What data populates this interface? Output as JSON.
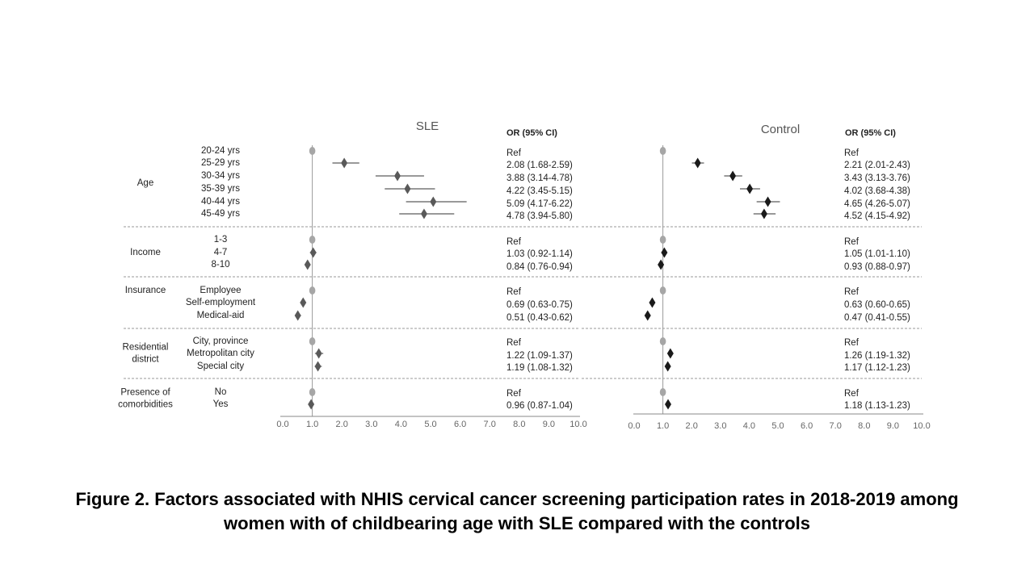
{
  "panels": [
    {
      "title": "SLE",
      "or_header": "OR (95% CI)",
      "marker_color": "#595959",
      "ref_color": "#a6a6a6",
      "xlim": [
        0,
        10
      ],
      "ticks": [
        "0.0",
        "1.0",
        "2.0",
        "3.0",
        "4.0",
        "5.0",
        "6.0",
        "7.0",
        "8.0",
        "9.0",
        "10.0"
      ],
      "rows": [
        {
          "or": 1.0,
          "lo": 1.0,
          "hi": 1.0,
          "label": "Ref",
          "ref": true
        },
        {
          "or": 2.08,
          "lo": 1.68,
          "hi": 2.59,
          "label": "2.08 (1.68-2.59)"
        },
        {
          "or": 3.88,
          "lo": 3.14,
          "hi": 4.78,
          "label": "3.88 (3.14-4.78)"
        },
        {
          "or": 4.22,
          "lo": 3.45,
          "hi": 5.15,
          "label": "4.22 (3.45-5.15)"
        },
        {
          "or": 5.09,
          "lo": 4.17,
          "hi": 6.22,
          "label": "5.09 (4.17-6.22)"
        },
        {
          "or": 4.78,
          "lo": 3.94,
          "hi": 5.8,
          "label": "4.78 (3.94-5.80)"
        },
        {
          "or": 1.0,
          "lo": 1.0,
          "hi": 1.0,
          "label": "Ref",
          "ref": true
        },
        {
          "or": 1.03,
          "lo": 0.92,
          "hi": 1.14,
          "label": "1.03 (0.92-1.14)"
        },
        {
          "or": 0.84,
          "lo": 0.76,
          "hi": 0.94,
          "label": "0.84 (0.76-0.94)"
        },
        {
          "or": 1.0,
          "lo": 1.0,
          "hi": 1.0,
          "label": "Ref",
          "ref": true
        },
        {
          "or": 0.69,
          "lo": 0.63,
          "hi": 0.75,
          "label": "0.69 (0.63-0.75)"
        },
        {
          "or": 0.51,
          "lo": 0.43,
          "hi": 0.62,
          "label": "0.51 (0.43-0.62)"
        },
        {
          "or": 1.0,
          "lo": 1.0,
          "hi": 1.0,
          "label": "Ref",
          "ref": true
        },
        {
          "or": 1.22,
          "lo": 1.09,
          "hi": 1.37,
          "label": "1.22 (1.09-1.37)"
        },
        {
          "or": 1.19,
          "lo": 1.08,
          "hi": 1.32,
          "label": "1.19 (1.08-1.32)"
        },
        {
          "or": 1.0,
          "lo": 1.0,
          "hi": 1.0,
          "label": "Ref",
          "ref": true
        },
        {
          "or": 0.96,
          "lo": 0.87,
          "hi": 1.04,
          "label": "0.96 (0.87-1.04)"
        }
      ]
    },
    {
      "title": "Control",
      "or_header": "OR (95% CI)",
      "marker_color": "#1a1a1a",
      "ref_color": "#a6a6a6",
      "xlim": [
        0,
        10
      ],
      "ticks": [
        "0.0",
        "1.0",
        "2.0",
        "3.0",
        "4.0",
        "5.0",
        "6.0",
        "7.0",
        "8.0",
        "9.0",
        "10.0"
      ],
      "rows": [
        {
          "or": 1.0,
          "lo": 1.0,
          "hi": 1.0,
          "label": "Ref",
          "ref": true
        },
        {
          "or": 2.21,
          "lo": 2.01,
          "hi": 2.43,
          "label": "2.21 (2.01-2.43)"
        },
        {
          "or": 3.43,
          "lo": 3.13,
          "hi": 3.76,
          "label": "3.43 (3.13-3.76)"
        },
        {
          "or": 4.02,
          "lo": 3.68,
          "hi": 4.38,
          "label": "4.02 (3.68-4.38)"
        },
        {
          "or": 4.65,
          "lo": 4.26,
          "hi": 5.07,
          "label": "4.65 (4.26-5.07)"
        },
        {
          "or": 4.52,
          "lo": 4.15,
          "hi": 4.92,
          "label": "4.52 (4.15-4.92)"
        },
        {
          "or": 1.0,
          "lo": 1.0,
          "hi": 1.0,
          "label": "Ref",
          "ref": true
        },
        {
          "or": 1.05,
          "lo": 1.01,
          "hi": 1.1,
          "label": "1.05 (1.01-1.10)"
        },
        {
          "or": 0.93,
          "lo": 0.88,
          "hi": 0.97,
          "label": "0.93 (0.88-0.97)"
        },
        {
          "or": 1.0,
          "lo": 1.0,
          "hi": 1.0,
          "label": "Ref",
          "ref": true
        },
        {
          "or": 0.63,
          "lo": 0.6,
          "hi": 0.65,
          "label": "0.63 (0.60-0.65)"
        },
        {
          "or": 0.47,
          "lo": 0.41,
          "hi": 0.55,
          "label": "0.47 (0.41-0.55)"
        },
        {
          "or": 1.0,
          "lo": 1.0,
          "hi": 1.0,
          "label": "Ref",
          "ref": true
        },
        {
          "or": 1.26,
          "lo": 1.19,
          "hi": 1.32,
          "label": "1.26 (1.19-1.32)"
        },
        {
          "or": 1.17,
          "lo": 1.12,
          "hi": 1.23,
          "label": "1.17 (1.12-1.23)"
        },
        {
          "or": 1.0,
          "lo": 1.0,
          "hi": 1.0,
          "label": "Ref",
          "ref": true
        },
        {
          "or": 1.18,
          "lo": 1.13,
          "hi": 1.23,
          "label": "1.18 (1.13-1.23)"
        }
      ]
    }
  ],
  "groups": [
    {
      "name": "Age",
      "sublabels": [
        "20-24 yrs",
        "25-29 yrs",
        "30-34 yrs",
        "35-39 yrs",
        "40-44 yrs",
        "45-49 yrs"
      ]
    },
    {
      "name": "Income",
      "sublabels": [
        "1-3",
        "4-7",
        "8-10"
      ]
    },
    {
      "name": "Insurance",
      "sublabels": [
        "Employee",
        "Self-employment",
        "Medical-aid"
      ]
    },
    {
      "name": "Residential district",
      "sublabels": [
        "City, province",
        "Metropolitan city",
        "Special city"
      ]
    },
    {
      "name": "Presence of comorbidities",
      "sublabels": [
        "No",
        "Yes"
      ]
    }
  ],
  "caption": "Figure 2. Factors associated with NHIS cervical cancer screening participation rates in 2018-2019 among women with of childbearing age with SLE compared with the controls",
  "chart_data": [
    {
      "type": "scatter",
      "title": "SLE",
      "x_label": "",
      "xlim": [
        0,
        10
      ],
      "categories": [
        "Age: 20-24 yrs",
        "Age: 25-29 yrs",
        "Age: 30-34 yrs",
        "Age: 35-39 yrs",
        "Age: 40-44 yrs",
        "Age: 45-49 yrs",
        "Income: 1-3",
        "Income: 4-7",
        "Income: 8-10",
        "Insurance: Employee",
        "Insurance: Self-employment",
        "Insurance: Medical-aid",
        "Residential district: City, province",
        "Residential district: Metropolitan city",
        "Residential district: Special city",
        "Presence of comorbidities: No",
        "Presence of comorbidities: Yes"
      ],
      "or": [
        1.0,
        2.08,
        3.88,
        4.22,
        5.09,
        4.78,
        1.0,
        1.03,
        0.84,
        1.0,
        0.69,
        0.51,
        1.0,
        1.22,
        1.19,
        1.0,
        0.96
      ],
      "ci_low": [
        null,
        1.68,
        3.14,
        3.45,
        4.17,
        3.94,
        null,
        0.92,
        0.76,
        null,
        0.63,
        0.43,
        null,
        1.09,
        1.08,
        null,
        0.87
      ],
      "ci_high": [
        null,
        2.59,
        4.78,
        5.15,
        6.22,
        5.8,
        null,
        1.14,
        0.94,
        null,
        0.75,
        0.62,
        null,
        1.37,
        1.32,
        null,
        1.04
      ],
      "reference_line": 1.0,
      "grid": false
    },
    {
      "type": "scatter",
      "title": "Control",
      "x_label": "",
      "xlim": [
        0,
        10
      ],
      "categories": [
        "Age: 20-24 yrs",
        "Age: 25-29 yrs",
        "Age: 30-34 yrs",
        "Age: 35-39 yrs",
        "Age: 40-44 yrs",
        "Age: 45-49 yrs",
        "Income: 1-3",
        "Income: 4-7",
        "Income: 8-10",
        "Insurance: Employee",
        "Insurance: Self-employment",
        "Insurance: Medical-aid",
        "Residential district: City, province",
        "Residential district: Metropolitan city",
        "Residential district: Special city",
        "Presence of comorbidities: No",
        "Presence of comorbidities: Yes"
      ],
      "or": [
        1.0,
        2.21,
        3.43,
        4.02,
        4.65,
        4.52,
        1.0,
        1.05,
        0.93,
        1.0,
        0.63,
        0.47,
        1.0,
        1.26,
        1.17,
        1.0,
        1.18
      ],
      "ci_low": [
        null,
        2.01,
        3.13,
        3.68,
        4.26,
        4.15,
        null,
        1.01,
        0.88,
        null,
        0.6,
        0.41,
        null,
        1.19,
        1.12,
        null,
        1.13
      ],
      "ci_high": [
        null,
        2.43,
        3.76,
        4.38,
        5.07,
        4.92,
        null,
        1.1,
        0.97,
        null,
        0.65,
        0.55,
        null,
        1.32,
        1.23,
        null,
        1.23
      ],
      "reference_line": 1.0,
      "grid": false
    }
  ]
}
